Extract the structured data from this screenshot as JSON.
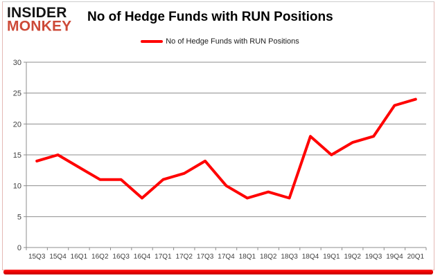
{
  "logo": {
    "line1": "INSIDER",
    "line2": "MONKEY"
  },
  "header": {
    "title": "No of Hedge Funds with RUN Positions"
  },
  "legend": {
    "label": "No of Hedge Funds with RUN Positions",
    "marker_color": "#ff0000"
  },
  "colors": {
    "series_line": "#ff0000",
    "grid": "#8c8c8c",
    "axis": "#8c8c8c",
    "axis_text": "#3f3f3f",
    "logo_black": "#141414",
    "logo_red": "#cd4a38",
    "bottom_bar": "#e60000",
    "card_border": "#e4b9b4"
  },
  "chart_data": {
    "type": "line",
    "title": "No of Hedge Funds with RUN Positions",
    "categories": [
      "15Q3",
      "15Q4",
      "16Q1",
      "16Q2",
      "16Q3",
      "16Q4",
      "17Q1",
      "17Q2",
      "17Q3",
      "17Q4",
      "18Q1",
      "18Q2",
      "18Q3",
      "18Q4",
      "19Q1",
      "19Q2",
      "19Q3",
      "19Q4",
      "20Q1"
    ],
    "series": [
      {
        "name": "No of Hedge Funds with RUN Positions",
        "color": "#ff0000",
        "values": [
          14,
          15,
          13,
          11,
          11,
          8,
          11,
          12,
          14,
          10,
          8,
          9,
          8,
          18,
          15,
          17,
          18,
          23,
          24
        ]
      }
    ],
    "xlabel": "",
    "ylabel": "",
    "ylim": [
      0,
      30
    ],
    "yticks": [
      0,
      5,
      10,
      15,
      20,
      25,
      30
    ],
    "grid": true,
    "legend_position": "top-center"
  }
}
